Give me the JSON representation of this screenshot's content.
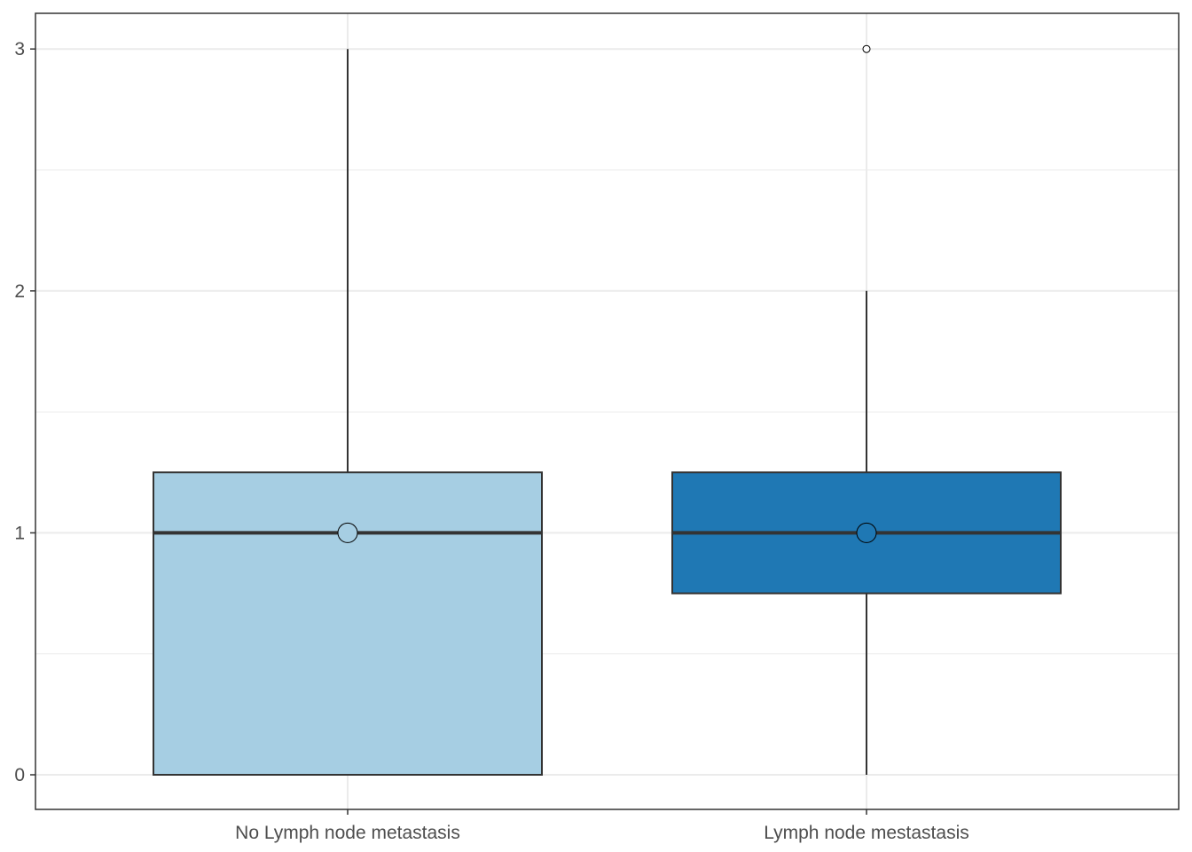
{
  "chart_data": {
    "type": "boxplot",
    "title": "",
    "xlabel": "",
    "ylabel": "",
    "categories": [
      "No Lymph node metastasis",
      "Lymph node mestastasis"
    ],
    "boxes": [
      {
        "category": "No Lymph node metastasis",
        "whisker_low": 0,
        "q1": 0,
        "median": 1,
        "q3": 1.25,
        "whisker_high": 3,
        "mean": 1,
        "outliers": [],
        "fill": "#a6cee3"
      },
      {
        "category": "Lymph node mestastasis",
        "whisker_low": 0,
        "q1": 0.75,
        "median": 1,
        "q3": 1.25,
        "whisker_high": 2,
        "mean": 1,
        "outliers": [
          3
        ],
        "fill": "#1f78b4"
      }
    ],
    "ylim": [
      -0.15,
      3.15
    ],
    "yticks": [
      0,
      1,
      2,
      3
    ],
    "ytick_labels": [
      "0",
      "1",
      "2",
      "3"
    ],
    "grid": true,
    "legend": "none",
    "colors": {
      "panel_border": "#333333",
      "grid": "#ebebeb",
      "box_line": "#333333",
      "text": "#4d4d4d"
    }
  }
}
